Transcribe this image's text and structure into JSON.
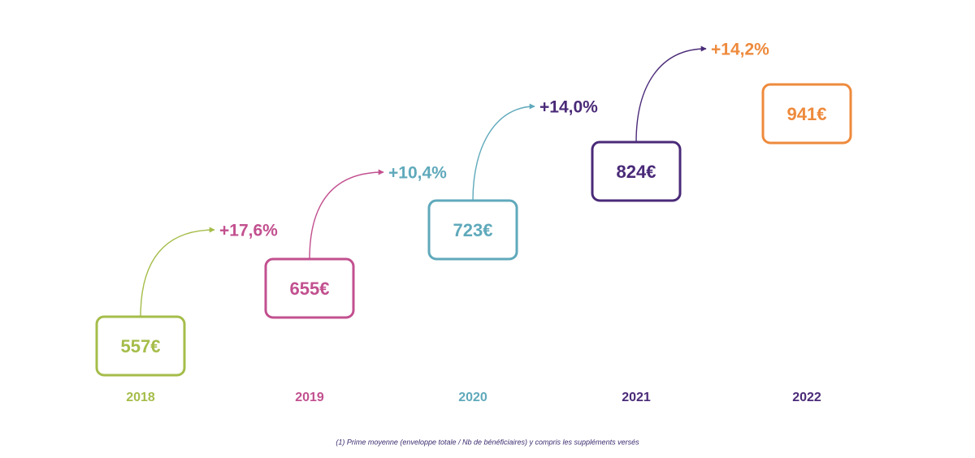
{
  "steps": [
    {
      "year": "2018",
      "value": "557€",
      "growth": "+17,6%"
    },
    {
      "year": "2019",
      "value": "655€",
      "growth": "+10,4%"
    },
    {
      "year": "2020",
      "value": "723€",
      "growth": "+14,0%"
    },
    {
      "year": "2021",
      "value": "824€",
      "growth": "+14,2%"
    },
    {
      "year": "2022",
      "value": "941€"
    }
  ],
  "footnote": "(1)   Prime moyenne (enveloppe totale / Nb de bénéficiaires) y compris les suppléments versés"
}
